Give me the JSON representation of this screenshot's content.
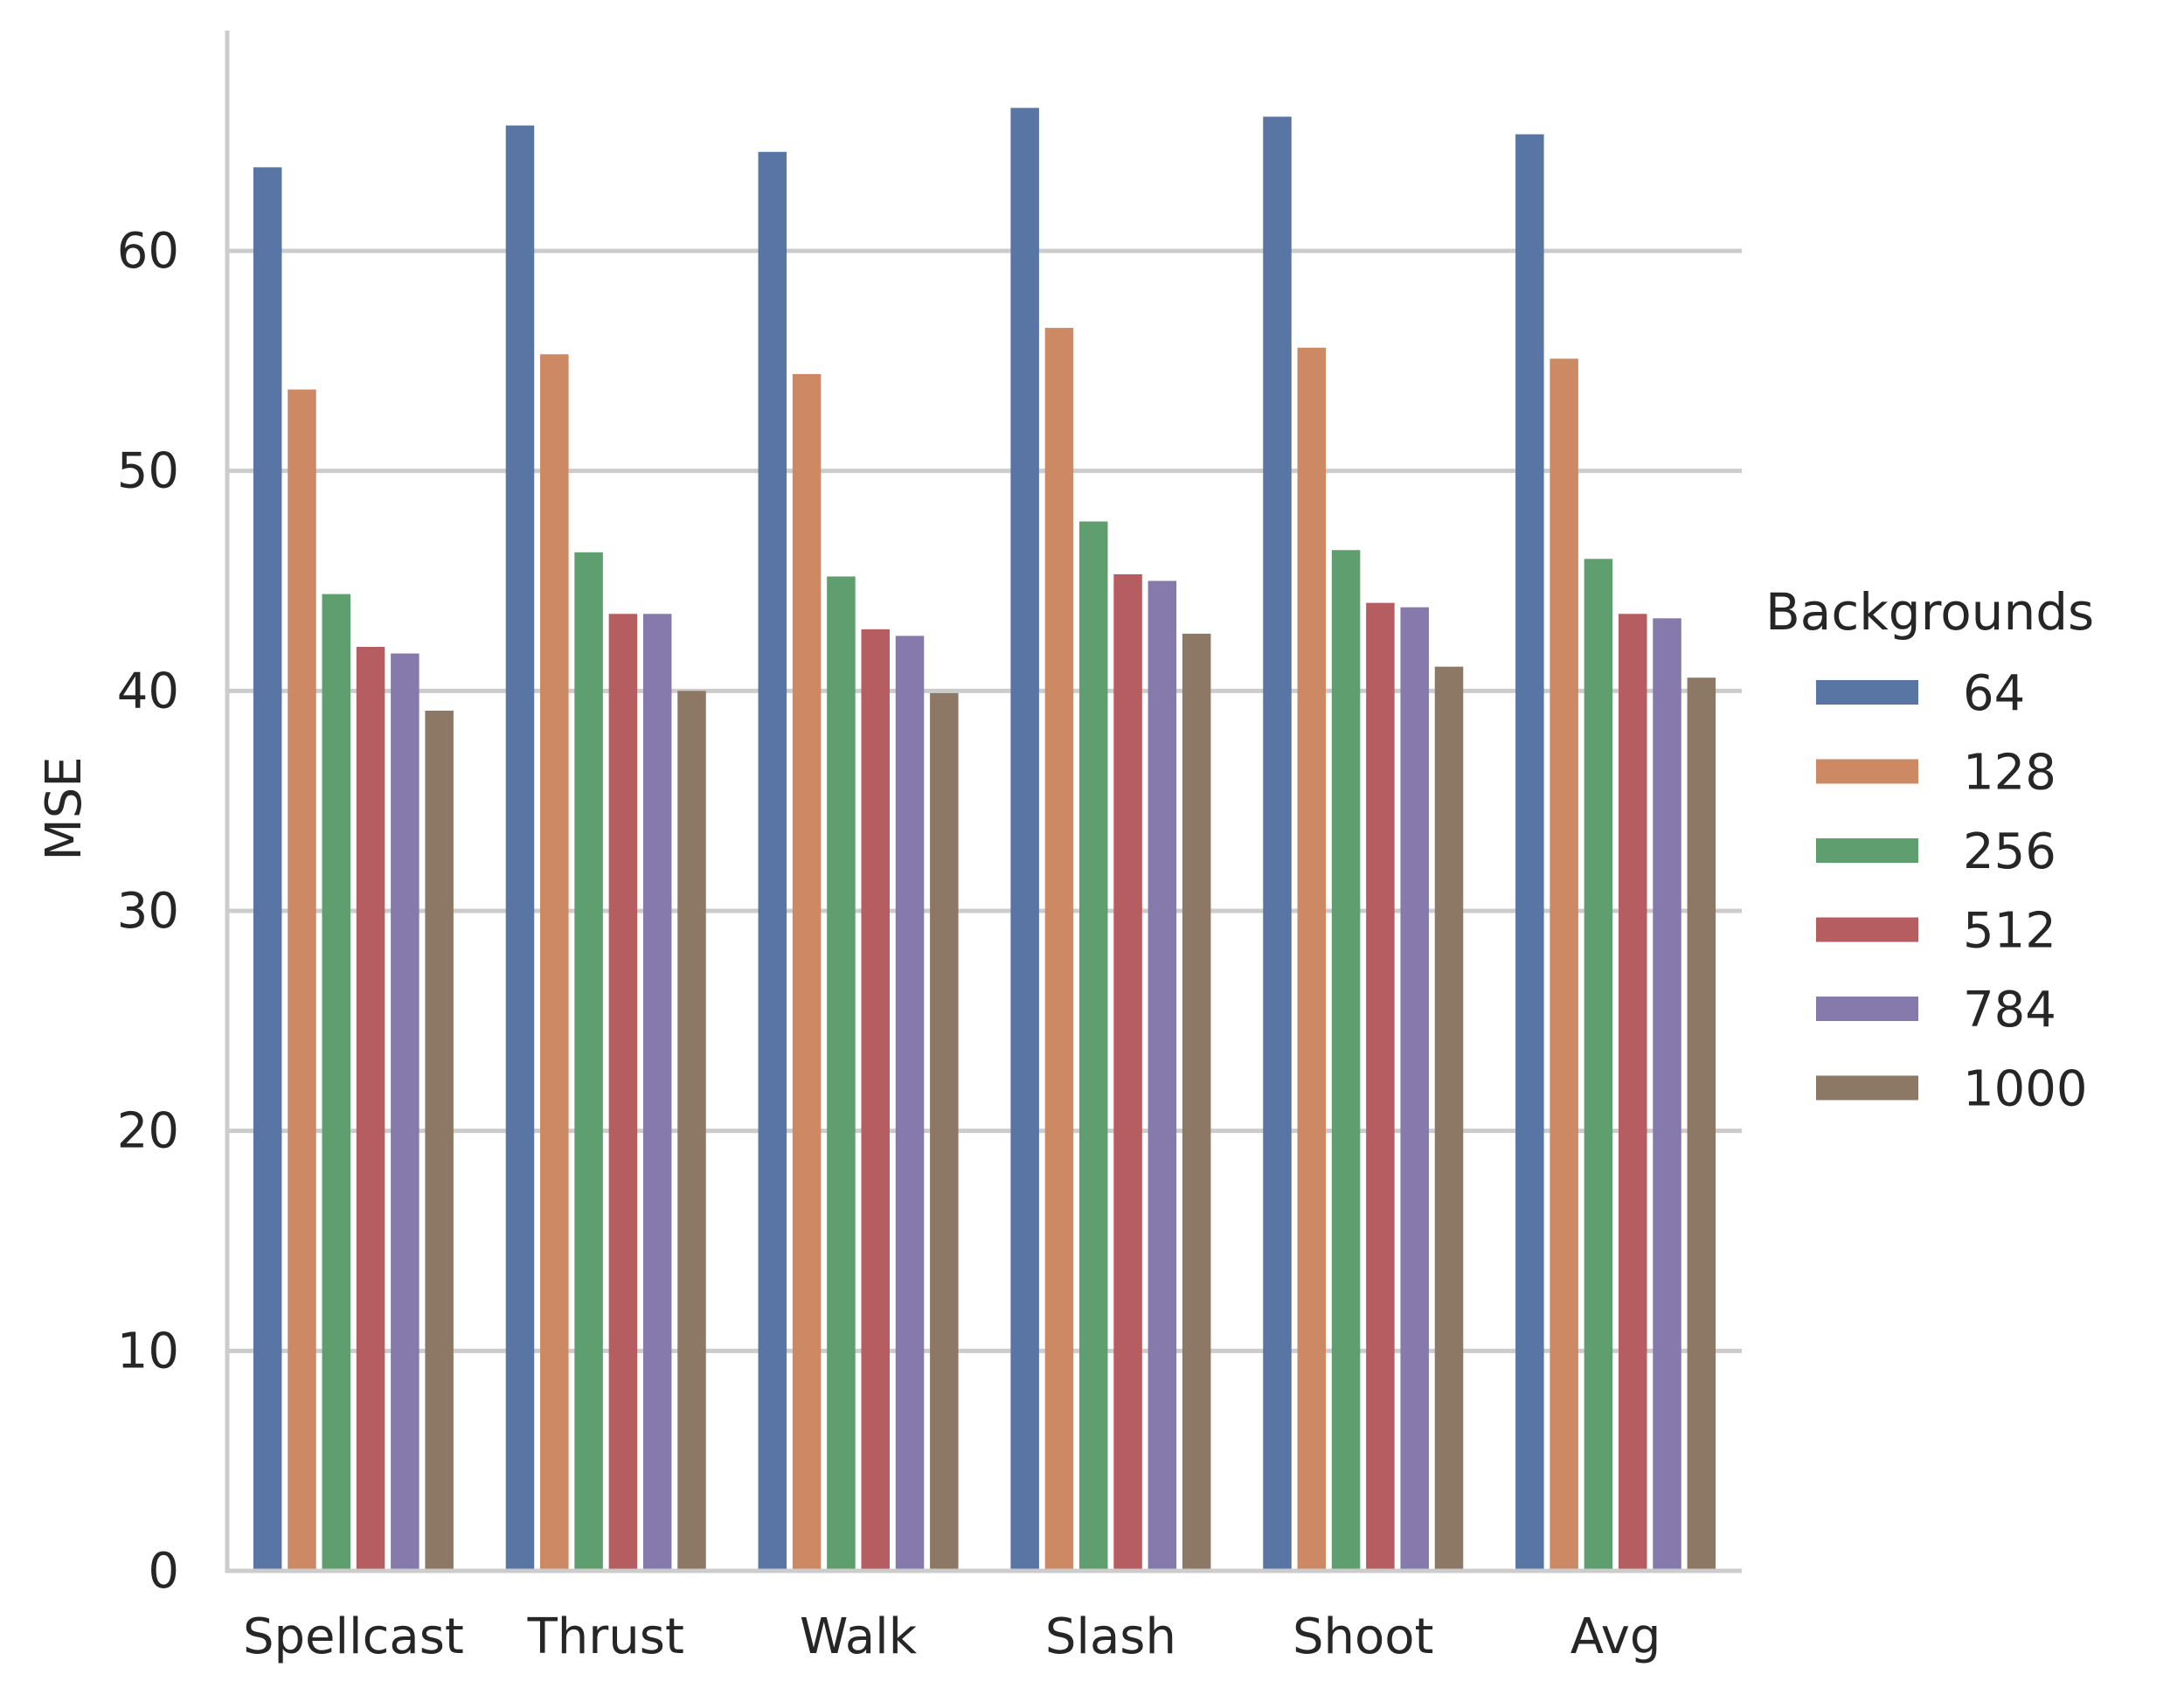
{
  "chart_data": {
    "type": "bar",
    "title": "",
    "xlabel": "",
    "ylabel": "MSE",
    "ylim": [
      0,
      70
    ],
    "yticks": [
      0,
      10,
      20,
      30,
      40,
      50,
      60
    ],
    "grid": "horizontal",
    "legend_position": "right",
    "legend_title": "Backgrounds",
    "categories": [
      "Spellcast",
      "Thrust",
      "Walk",
      "Slash",
      "Shoot",
      "Avg"
    ],
    "series": [
      {
        "name": "64",
        "color": "#5975a4",
        "values": [
          63.8,
          65.7,
          64.5,
          66.5,
          66.1,
          65.3
        ]
      },
      {
        "name": "128",
        "color": "#cc8963",
        "values": [
          53.7,
          55.3,
          54.4,
          56.5,
          55.6,
          55.1
        ]
      },
      {
        "name": "256",
        "color": "#5f9e6e",
        "values": [
          44.4,
          46.3,
          45.2,
          47.7,
          46.4,
          46.0
        ]
      },
      {
        "name": "512",
        "color": "#b55d60",
        "values": [
          42.0,
          43.5,
          42.8,
          45.3,
          44.0,
          43.5
        ]
      },
      {
        "name": "784",
        "color": "#857aab",
        "values": [
          41.7,
          43.5,
          42.5,
          45.0,
          43.8,
          43.3
        ]
      },
      {
        "name": "1000",
        "color": "#8d7866",
        "values": [
          39.1,
          40.0,
          39.9,
          42.6,
          41.1,
          40.6
        ]
      }
    ]
  }
}
